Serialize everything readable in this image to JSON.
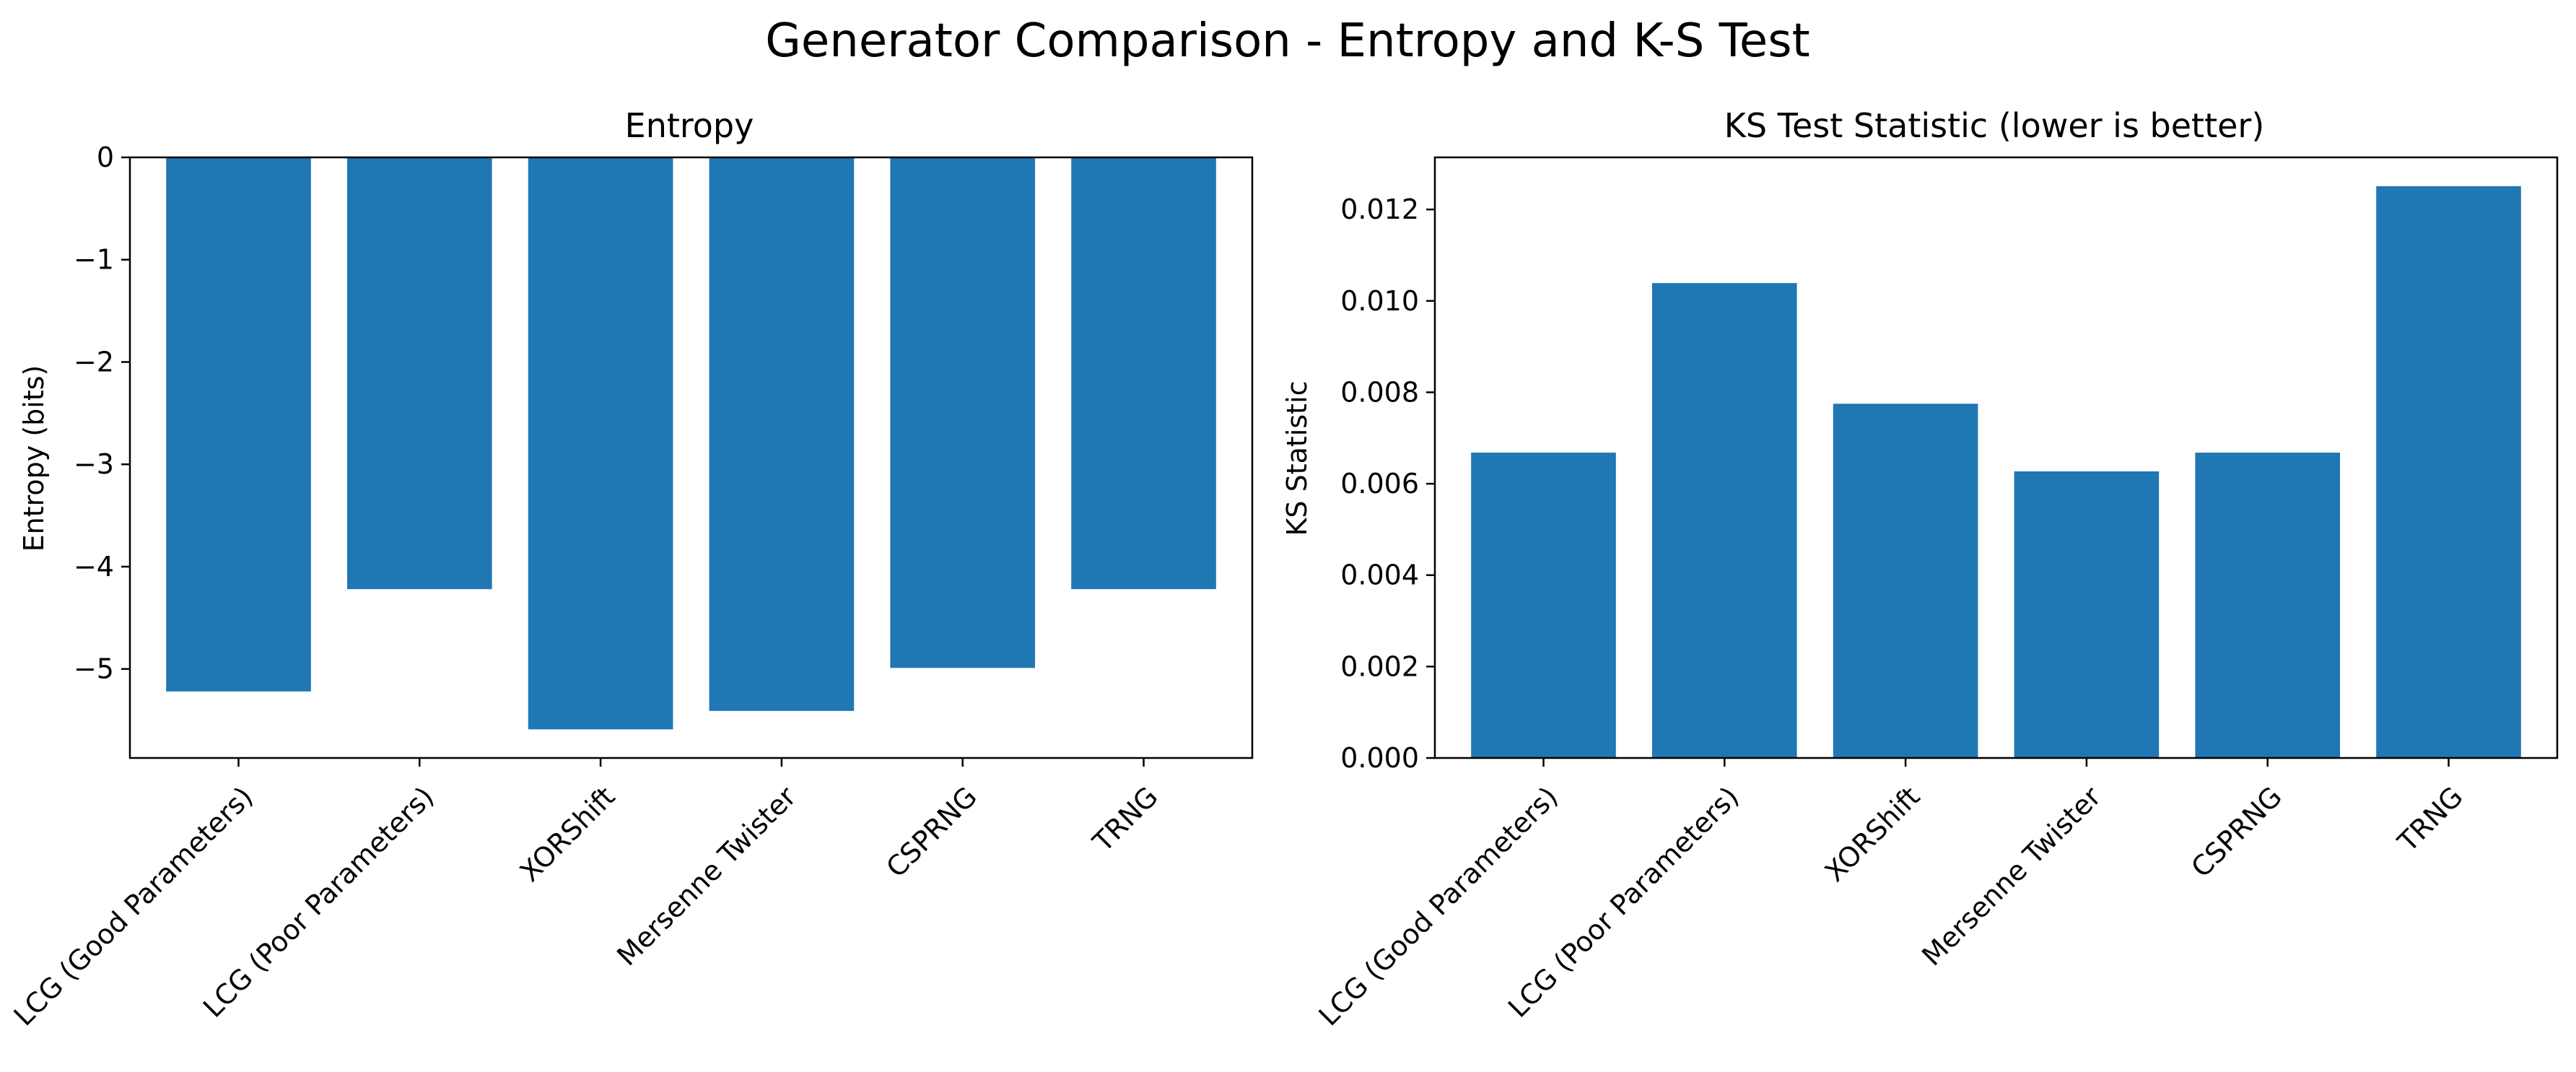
{
  "figure": {
    "title": "Generator Comparison - Entropy and K-S Test"
  },
  "colors": {
    "bar": "#1f77b4",
    "axis": "#000000",
    "background": "#ffffff"
  },
  "chart_data": [
    {
      "type": "bar",
      "title": "Entropy",
      "xlabel": "",
      "ylabel": "Entropy (bits)",
      "categories": [
        "LCG (Good Parameters)",
        "LCG (Poor Parameters)",
        "XORShift",
        "Mersenne Twister",
        "CSPRNG",
        "TRNG"
      ],
      "values": [
        -5.22,
        -4.22,
        -5.59,
        -5.41,
        -4.99,
        -4.22
      ],
      "ylim": [
        -5.87,
        0
      ],
      "yticks": [
        0,
        -1,
        -2,
        -3,
        -4,
        -5
      ],
      "ytick_labels": [
        "0",
        "−1",
        "−2",
        "−3",
        "−4",
        "−5"
      ],
      "grid": false,
      "legend": "none"
    },
    {
      "type": "bar",
      "title": "KS Test Statistic (lower is better)",
      "xlabel": "",
      "ylabel": "KS Statistic",
      "categories": [
        "LCG (Good Parameters)",
        "LCG (Poor Parameters)",
        "XORShift",
        "Mersenne Twister",
        "CSPRNG",
        "TRNG"
      ],
      "values": [
        0.00668,
        0.01039,
        0.00775,
        0.00627,
        0.00668,
        0.01251
      ],
      "ylim": [
        0,
        0.01314
      ],
      "yticks": [
        0,
        0.002,
        0.004,
        0.006,
        0.008,
        0.01,
        0.012
      ],
      "ytick_labels": [
        "0.000",
        "0.002",
        "0.004",
        "0.006",
        "0.008",
        "0.010",
        "0.012"
      ],
      "grid": false,
      "legend": "none"
    }
  ]
}
